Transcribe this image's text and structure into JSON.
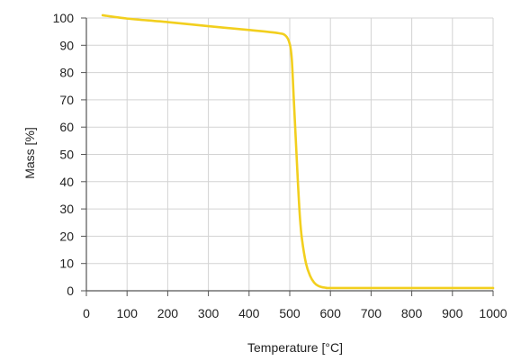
{
  "chart_data": {
    "type": "line",
    "xlabel": "Temperature [°C]",
    "ylabel": "Mass [%]",
    "xlim": [
      0,
      1000
    ],
    "ylim": [
      0,
      100
    ],
    "x_ticks": [
      "0",
      "100",
      "200",
      "300",
      "400",
      "500",
      "600",
      "700",
      "800",
      "900",
      "1000"
    ],
    "y_ticks": [
      "0",
      "10",
      "20",
      "30",
      "40",
      "50",
      "60",
      "70",
      "80",
      "90",
      "100"
    ],
    "grid": true,
    "legend": "none",
    "series": [
      {
        "color": "#f2cf1e",
        "x": [
          40,
          100,
          200,
          300,
          400,
          470,
          490,
          500,
          505,
          510,
          515,
          520,
          525,
          530,
          540,
          550,
          560,
          570,
          580,
          590,
          600,
          700,
          800,
          900,
          1000
        ],
        "y": [
          101,
          99.8,
          98.5,
          97,
          95.6,
          94.5,
          93.5,
          90.5,
          85,
          70,
          55,
          40,
          27,
          19,
          10,
          5.5,
          3,
          1.8,
          1.3,
          1.1,
          1.0,
          1.0,
          1.0,
          1.0,
          1.0
        ]
      }
    ]
  }
}
